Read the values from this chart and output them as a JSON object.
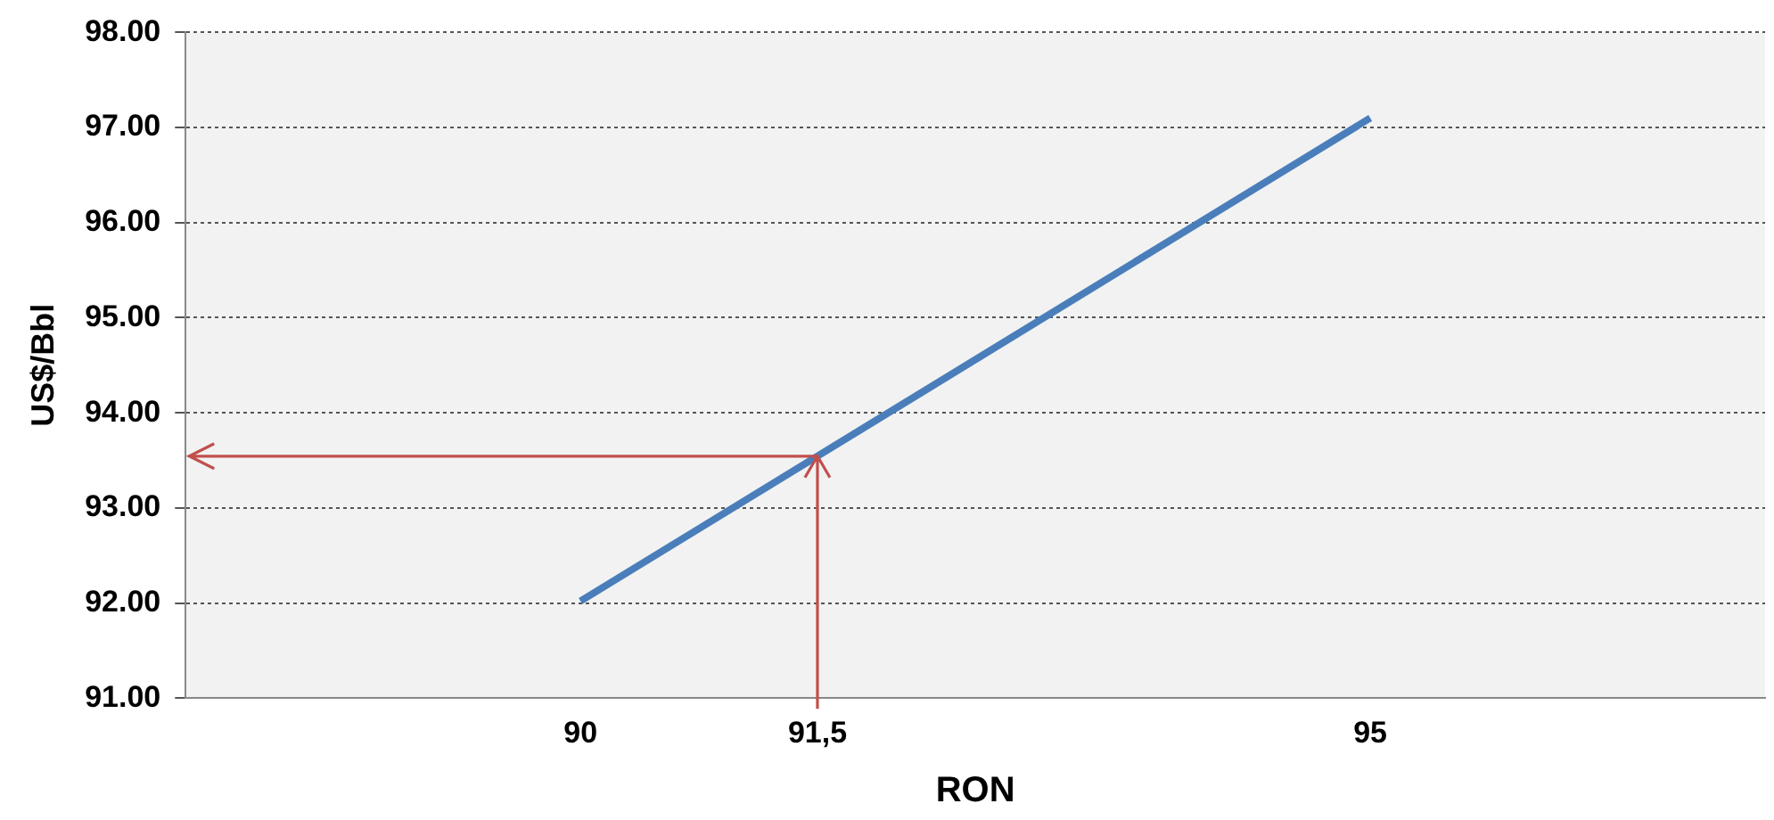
{
  "chart_data": {
    "type": "line",
    "xlabel": "RON",
    "ylabel": "US$/Bbl",
    "x": [
      90,
      95
    ],
    "series": [
      {
        "color": "#4a7ebb",
        "values": [
          92.02,
          97.1
        ]
      }
    ],
    "xlim": [
      87.5,
      97.5
    ],
    "xticks": [
      90,
      {
        "value": 91.5,
        "label": "91,5"
      },
      95
    ],
    "ylim": [
      91,
      98
    ],
    "yticks": [
      {
        "value": 91,
        "label": "91.00"
      },
      {
        "value": 92,
        "label": "92.00"
      },
      {
        "value": 93,
        "label": "93.00"
      },
      {
        "value": 94,
        "label": "94.00"
      },
      {
        "value": 95,
        "label": "95.00"
      },
      {
        "value": 96,
        "label": "96.00"
      },
      {
        "value": 97,
        "label": "97.00"
      },
      {
        "value": 98,
        "label": "98.00"
      }
    ],
    "grid": "y",
    "legend": false,
    "marker": "none",
    "line_style": "solid"
  }
}
